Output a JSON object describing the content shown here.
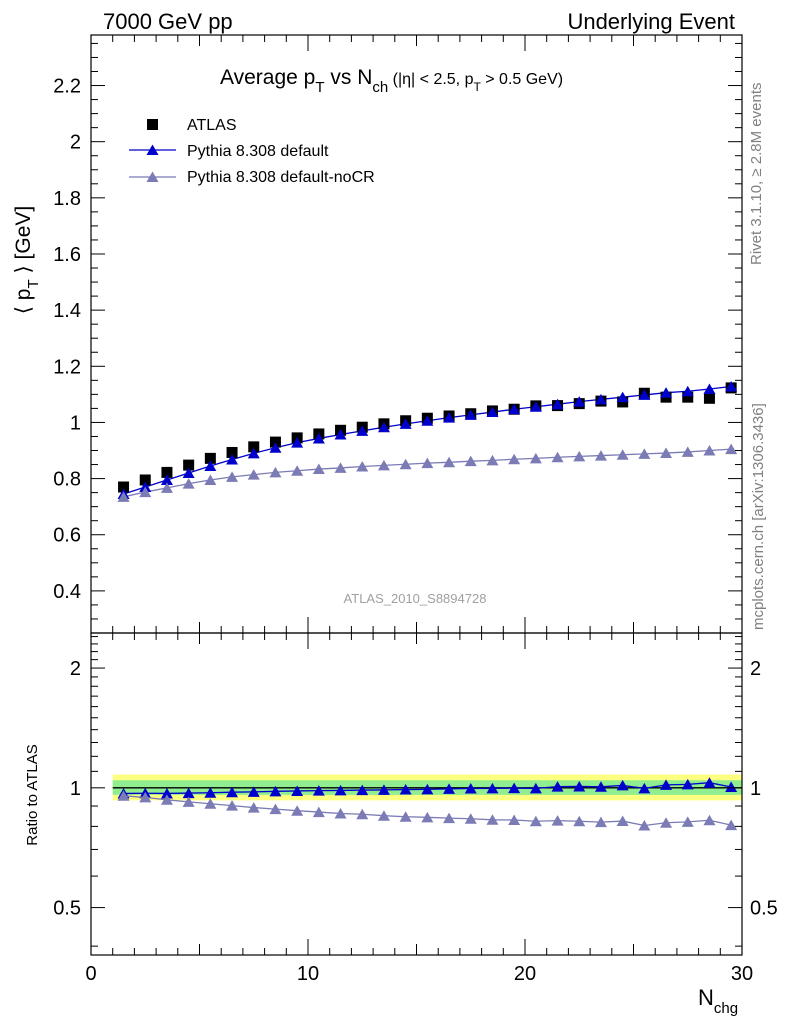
{
  "header": {
    "left": "7000 GeV pp",
    "right": "Underlying Event"
  },
  "side": {
    "rivet": "Rivet 3.1.10, ≥ 2.8M events",
    "mcplots": "mcplots.cern.ch [arXiv:1306.3436]"
  },
  "chart_data": [
    {
      "type": "line",
      "title_parts": {
        "pre": "Average p",
        "sub1": "T",
        "mid": " vs N",
        "sub2": "ch",
        "cut1": " (|η| < 2.5, p",
        "sub3": "T",
        "cut2": " > 0.5 GeV)"
      },
      "ylabel_parts": {
        "pre": "⟨ p",
        "sub": "T",
        "post": " ⟩ [GeV]"
      },
      "xlabel_parts": {
        "pre": "N",
        "sub": "chg"
      },
      "watermark": "ATLAS_2010_S8894728",
      "xlim": [
        0,
        30
      ],
      "ylim": [
        0.25,
        2.38
      ],
      "yticks": [
        "0.4",
        "0.6",
        "0.8",
        "1",
        "1.2",
        "1.4",
        "1.6",
        "1.8",
        "2",
        "2.2"
      ],
      "xticks": [
        "0",
        "10",
        "20",
        "30"
      ],
      "legend_position": "top-left",
      "x": [
        1.5,
        2.5,
        3.5,
        4.5,
        5.5,
        6.5,
        7.5,
        8.5,
        9.5,
        10.5,
        11.5,
        12.5,
        13.5,
        14.5,
        15.5,
        16.5,
        17.5,
        18.5,
        19.5,
        20.5,
        21.5,
        22.5,
        23.5,
        24.5,
        25.5,
        26.5,
        27.5,
        28.5,
        29.5
      ],
      "series": [
        {
          "name": "ATLAS",
          "color": "#000000",
          "marker": "square",
          "values": [
            0.77,
            0.795,
            0.822,
            0.848,
            0.872,
            0.893,
            0.913,
            0.93,
            0.945,
            0.959,
            0.972,
            0.983,
            0.995,
            1.006,
            1.015,
            1.023,
            1.031,
            1.041,
            1.047,
            1.059,
            1.06,
            1.067,
            1.076,
            1.073,
            1.104,
            1.09,
            1.09,
            1.086,
            1.123
          ]
        },
        {
          "name": "Pythia 8.308 default",
          "color": "#0000cc",
          "marker": "triangle",
          "values": [
            0.745,
            0.77,
            0.795,
            0.82,
            0.845,
            0.868,
            0.89,
            0.91,
            0.928,
            0.943,
            0.957,
            0.97,
            0.983,
            0.995,
            1.006,
            1.017,
            1.027,
            1.037,
            1.047,
            1.056,
            1.065,
            1.074,
            1.082,
            1.09,
            1.098,
            1.106,
            1.111,
            1.119,
            1.128
          ]
        },
        {
          "name": "Pythia 8.308 default-noCR",
          "color": "#7b7bb5",
          "marker": "triangle",
          "values": [
            0.735,
            0.752,
            0.767,
            0.782,
            0.795,
            0.806,
            0.814,
            0.822,
            0.828,
            0.834,
            0.838,
            0.843,
            0.847,
            0.851,
            0.855,
            0.858,
            0.862,
            0.865,
            0.869,
            0.872,
            0.876,
            0.879,
            0.882,
            0.885,
            0.888,
            0.891,
            0.895,
            0.9,
            0.905
          ]
        }
      ]
    },
    {
      "type": "line",
      "ylabel": "Ratio to ATLAS",
      "xlim": [
        0,
        30
      ],
      "ylim": [
        0.38,
        2.45
      ],
      "log_y": true,
      "yticks": [
        "0.5",
        "1",
        "2"
      ],
      "yticks_right": [
        "0.5",
        "1",
        "2"
      ],
      "band_yellow": [
        0.93,
        1.08
      ],
      "band_green": [
        0.96,
        1.045
      ],
      "x": [
        1.5,
        2.5,
        3.5,
        4.5,
        5.5,
        6.5,
        7.5,
        8.5,
        9.5,
        10.5,
        11.5,
        12.5,
        13.5,
        14.5,
        15.5,
        16.5,
        17.5,
        18.5,
        19.5,
        20.5,
        21.5,
        22.5,
        23.5,
        24.5,
        25.5,
        26.5,
        27.5,
        28.5,
        29.5
      ],
      "series": [
        {
          "name": "Pythia 8.308 default",
          "color": "#0000cc",
          "values": [
            0.968,
            0.969,
            0.968,
            0.97,
            0.972,
            0.975,
            0.977,
            0.98,
            0.982,
            0.984,
            0.985,
            0.987,
            0.988,
            0.99,
            0.991,
            0.994,
            0.996,
            0.997,
            0.998,
            0.997,
            1.007,
            1.008,
            1.006,
            1.014,
            0.997,
            1.017,
            1.02,
            1.03,
            1.005
          ]
        },
        {
          "name": "Pythia 8.308 default-noCR",
          "color": "#7b7bb5",
          "values": [
            0.955,
            0.946,
            0.933,
            0.922,
            0.912,
            0.902,
            0.892,
            0.884,
            0.876,
            0.869,
            0.862,
            0.858,
            0.851,
            0.846,
            0.843,
            0.839,
            0.836,
            0.831,
            0.83,
            0.824,
            0.827,
            0.824,
            0.82,
            0.825,
            0.804,
            0.817,
            0.821,
            0.829,
            0.806
          ]
        }
      ]
    }
  ]
}
